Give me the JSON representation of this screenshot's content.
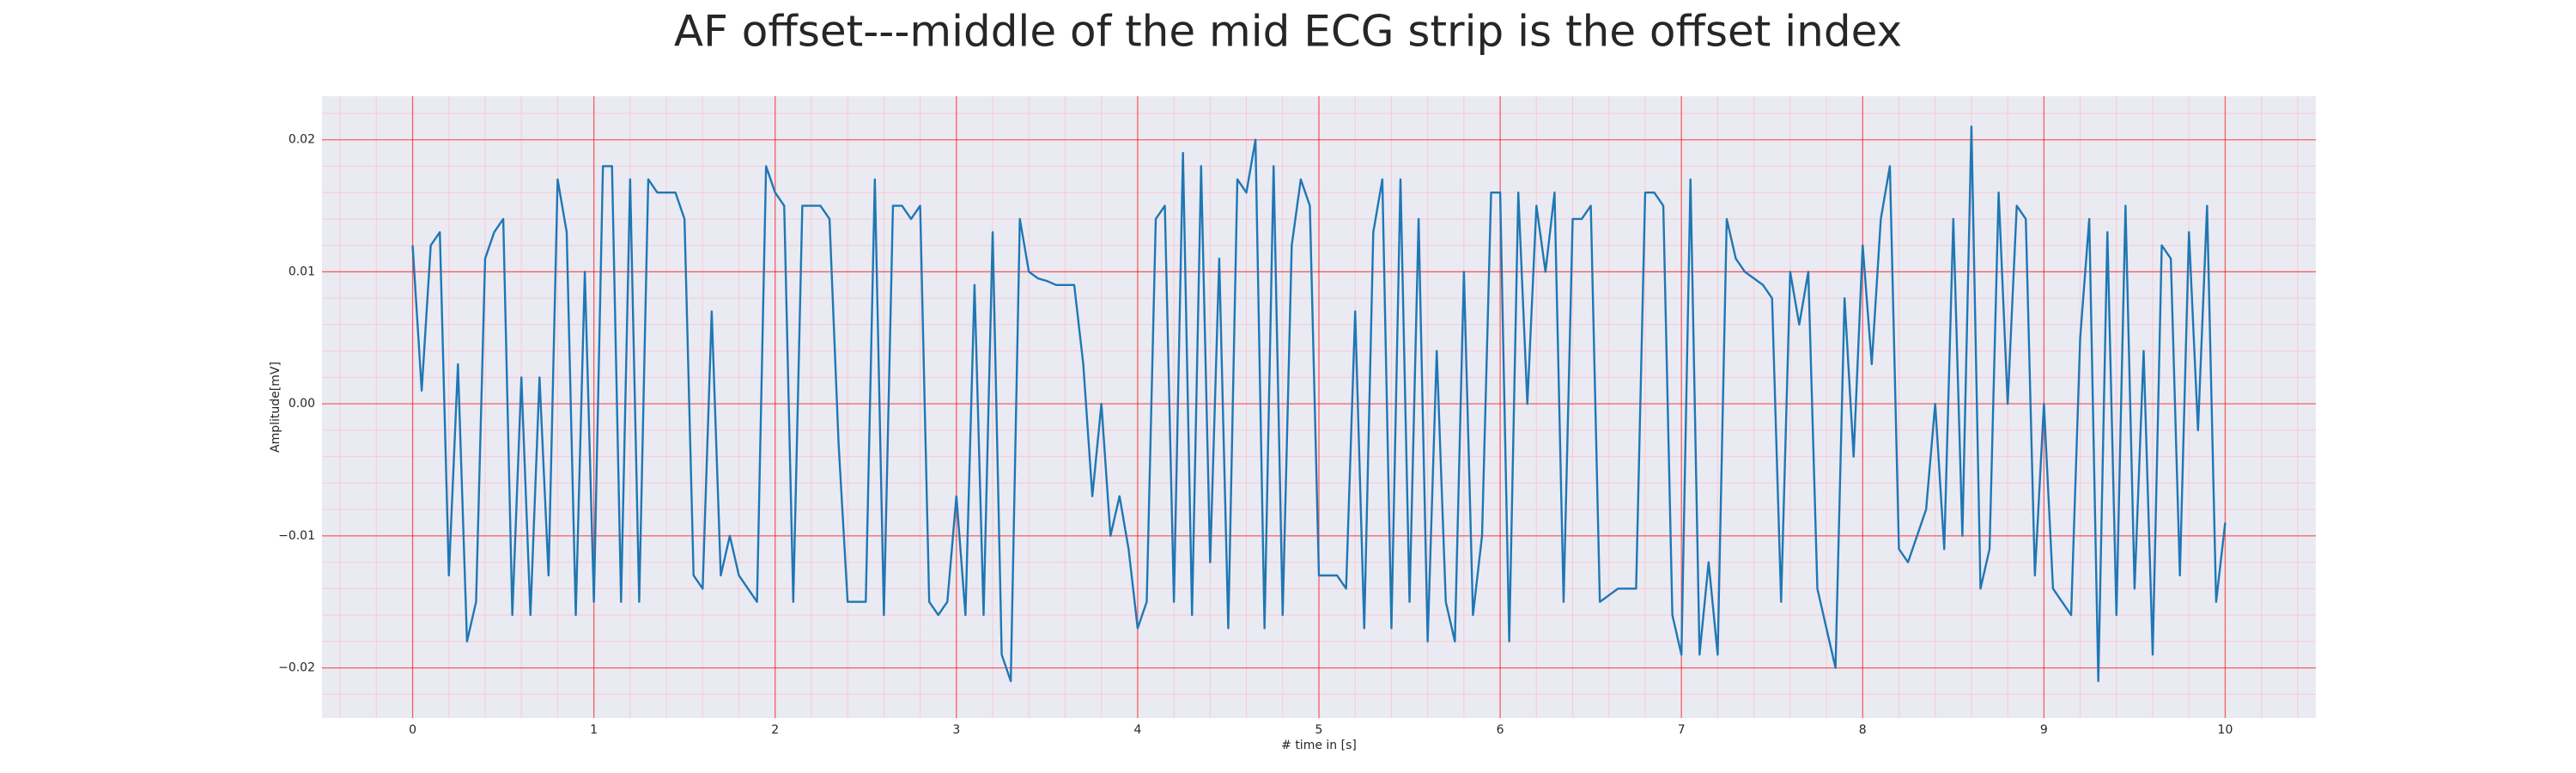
{
  "chart_data": {
    "type": "line",
    "title": "AF offset---middle of the mid ECG strip is the offset index",
    "xlabel": "# time in [s]",
    "ylabel": "Amplitude[mV]",
    "xlim": [
      -0.5,
      10.5
    ],
    "ylim": [
      -0.0238,
      0.0233
    ],
    "xticks": [
      0,
      1,
      2,
      3,
      4,
      5,
      6,
      7,
      8,
      9,
      10
    ],
    "yticks": [
      {
        "value": -0.02,
        "label": "−0.02"
      },
      {
        "value": -0.01,
        "label": "−0.01"
      },
      {
        "value": 0,
        "label": "0.00"
      },
      0.01,
      0.02
    ],
    "grid": true,
    "minor_grid": true,
    "x": [
      0,
      0.05,
      0.1,
      0.15,
      0.2,
      0.25,
      0.3,
      0.35,
      0.4,
      0.45,
      0.5,
      0.55,
      0.6,
      0.65,
      0.7,
      0.75,
      0.8,
      0.85,
      0.9,
      0.95,
      1,
      1.05,
      1.1,
      1.15,
      1.2,
      1.25,
      1.3,
      1.35,
      1.4,
      1.45,
      1.5,
      1.55,
      1.6,
      1.65,
      1.7,
      1.75,
      1.8,
      1.85,
      1.9,
      1.95,
      2,
      2.05,
      2.1,
      2.15,
      2.2,
      2.25,
      2.3,
      2.35,
      2.4,
      2.45,
      2.5,
      2.55,
      2.6,
      2.65,
      2.7,
      2.75,
      2.8,
      2.85,
      2.9,
      2.95,
      3,
      3.05,
      3.1,
      3.15,
      3.2,
      3.25,
      3.3,
      3.35,
      3.4,
      3.45,
      3.5,
      3.55,
      3.6,
      3.65,
      3.7,
      3.75,
      3.8,
      3.85,
      3.9,
      3.95,
      4,
      4.05,
      4.1,
      4.15,
      4.2,
      4.25,
      4.3,
      4.35,
      4.4,
      4.45,
      4.5,
      4.55,
      4.6,
      4.65,
      4.7,
      4.75,
      4.8,
      4.85,
      4.9,
      4.95,
      5,
      5.05,
      5.1,
      5.15,
      5.2,
      5.25,
      5.3,
      5.35,
      5.4,
      5.45,
      5.5,
      5.55,
      5.6,
      5.65,
      5.7,
      5.75,
      5.8,
      5.85,
      5.9,
      5.95,
      6,
      6.05,
      6.1,
      6.15,
      6.2,
      6.25,
      6.3,
      6.35,
      6.4,
      6.45,
      6.5,
      6.55,
      6.6,
      6.65,
      6.7,
      6.75,
      6.8,
      6.85,
      6.9,
      6.95,
      7,
      7.05,
      7.1,
      7.15,
      7.2,
      7.25,
      7.3,
      7.35,
      7.4,
      7.45,
      7.5,
      7.55,
      7.6,
      7.65,
      7.7,
      7.75,
      7.8,
      7.85,
      7.9,
      7.95,
      8,
      8.05,
      8.1,
      8.15,
      8.2,
      8.25,
      8.3,
      8.35,
      8.4,
      8.45,
      8.5,
      8.55,
      8.6,
      8.65,
      8.7,
      8.75,
      8.8,
      8.85,
      8.9,
      8.95,
      9,
      9.05,
      9.1,
      9.15,
      9.2,
      9.25,
      9.3,
      9.35,
      9.4,
      9.45,
      9.5,
      9.55,
      9.6,
      9.65,
      9.7,
      9.75,
      9.8,
      9.85,
      9.9,
      9.95,
      10
    ],
    "series": [
      {
        "color": "#1f77b4",
        "values": [
          0.012,
          0.001,
          0.012,
          0.013,
          -0.013,
          0.003,
          -0.018,
          -0.015,
          0.011,
          0.013,
          0.014,
          -0.016,
          0.002,
          -0.016,
          0.002,
          -0.013,
          0.017,
          0.013,
          -0.016,
          0.01,
          -0.015,
          0.018,
          0.018,
          -0.015,
          0.017,
          -0.015,
          0.017,
          0.016,
          0.016,
          0.016,
          0.014,
          -0.013,
          -0.014,
          0.007,
          -0.013,
          -0.01,
          -0.013,
          -0.014,
          -0.015,
          0.018,
          0.016,
          0.015,
          -0.015,
          0.015,
          0.015,
          0.015,
          0.014,
          -0.003,
          -0.015,
          -0.015,
          -0.015,
          0.017,
          -0.016,
          0.015,
          0.015,
          0.014,
          0.015,
          -0.015,
          -0.016,
          -0.015,
          -0.007,
          -0.016,
          0.009,
          -0.016,
          0.013,
          -0.019,
          -0.021,
          0.014,
          0.01,
          0.0095,
          0.0093,
          0.009,
          0.009,
          0.009,
          0.003,
          -0.007,
          0,
          -0.01,
          -0.007,
          -0.011,
          -0.017,
          -0.015,
          0.014,
          0.015,
          -0.015,
          0.019,
          -0.016,
          0.018,
          -0.012,
          0.011,
          -0.017,
          0.017,
          0.016,
          0.02,
          -0.017,
          0.018,
          -0.016,
          0.012,
          0.017,
          0.015,
          -0.013,
          -0.013,
          -0.013,
          -0.014,
          0.007,
          -0.017,
          0.013,
          0.017,
          -0.017,
          0.017,
          -0.015,
          0.014,
          -0.018,
          0.004,
          -0.015,
          -0.018,
          0.01,
          -0.016,
          -0.01,
          0.016,
          0.016,
          -0.018,
          0.016,
          0,
          0.015,
          0.01,
          0.016,
          -0.015,
          0.014,
          0.014,
          0.015,
          -0.015,
          -0.0145,
          -0.014,
          -0.014,
          -0.014,
          0.016,
          0.016,
          0.015,
          -0.016,
          -0.019,
          0.017,
          -0.019,
          -0.012,
          -0.019,
          0.014,
          0.011,
          0.01,
          0.0095,
          0.009,
          0.008,
          -0.015,
          0.01,
          0.006,
          0.01,
          -0.014,
          -0.017,
          -0.02,
          0.008,
          -0.004,
          0.012,
          0.003,
          0.014,
          0.018,
          -0.011,
          -0.012,
          -0.01,
          -0.008,
          0,
          -0.011,
          0.014,
          -0.01,
          0.021,
          -0.014,
          -0.011,
          0.016,
          0,
          0.015,
          0.014,
          -0.013,
          0,
          -0.014,
          -0.015,
          -0.016,
          0.005,
          0.014,
          -0.021,
          0.013,
          -0.016,
          0.015,
          -0.014,
          0.004,
          -0.019,
          0.012,
          0.011,
          -0.013,
          0.013,
          -0.002,
          0.015,
          -0.015,
          -0.009
        ]
      }
    ]
  }
}
